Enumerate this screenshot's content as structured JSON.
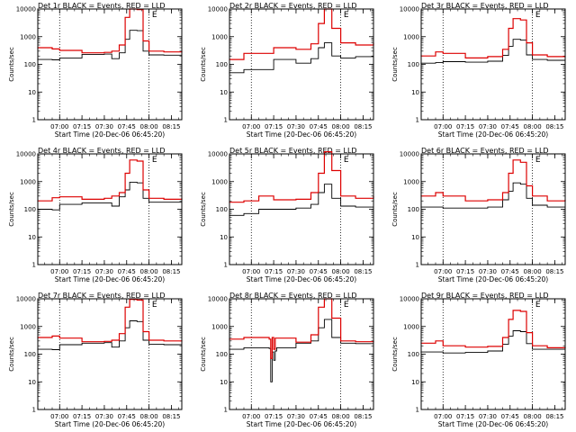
{
  "colors": {
    "events": "#000000",
    "lld": "#dd0000",
    "background": "#ffffff",
    "axes": "#000000"
  },
  "common": {
    "ylabel": "Counts/sec",
    "xlabel": "Start Time (20-Dec-06 06:45:20)",
    "y_scale": "log",
    "ylim": [
      1,
      10000
    ],
    "ytick_labels": [
      "1",
      "10",
      "100",
      "1000",
      "10000"
    ],
    "xtick_labels": [
      "07:00",
      "07:15",
      "07:30",
      "07:45",
      "08:00",
      "08:15"
    ],
    "xtick_values": [
      "07:00",
      "07:15",
      "07:30",
      "07:45",
      "08:00",
      "08:15"
    ],
    "xlim": [
      "06:45:20",
      "08:22:00"
    ],
    "grid": "vertical dotted lines at 07:00 and 08:00",
    "marker_label": "E"
  },
  "chart_data": [
    {
      "type": "line",
      "title": "Det 1r  BLACK = Events, RED = LLD",
      "x": [
        "06:45",
        "06:55",
        "07:00",
        "07:15",
        "07:30",
        "07:35",
        "07:40",
        "07:44",
        "07:47",
        "07:52",
        "07:56",
        "08:00",
        "08:10",
        "08:22"
      ],
      "series": [
        {
          "name": "Events",
          "values": [
            150,
            145,
            170,
            230,
            235,
            160,
            260,
            800,
            1700,
            1650,
            300,
            220,
            215,
            220
          ]
        },
        {
          "name": "LLD",
          "values": [
            400,
            360,
            320,
            260,
            270,
            300,
            500,
            5000,
            10000,
            9500,
            700,
            300,
            280,
            300
          ]
        }
      ]
    },
    {
      "type": "line",
      "title": "Det 2r  BLACK = Events, RED = LLD",
      "x": [
        "06:45",
        "06:55",
        "07:15",
        "07:30",
        "07:40",
        "07:45",
        "07:49",
        "07:54",
        "08:00",
        "08:10",
        "08:22"
      ],
      "series": [
        {
          "name": "Events",
          "values": [
            50,
            65,
            150,
            110,
            160,
            400,
            600,
            200,
            170,
            190,
            240
          ]
        },
        {
          "name": "LLD",
          "values": [
            150,
            250,
            400,
            350,
            550,
            3000,
            10000,
            2000,
            600,
            500,
            600
          ]
        }
      ]
    },
    {
      "type": "line",
      "title": "Det 3r  BLACK = Events, RED = LLD",
      "x": [
        "06:45",
        "06:55",
        "07:00",
        "07:15",
        "07:30",
        "07:40",
        "07:44",
        "07:47",
        "07:52",
        "07:56",
        "08:00",
        "08:10",
        "08:22"
      ],
      "series": [
        {
          "name": "Events",
          "values": [
            110,
            115,
            125,
            120,
            130,
            210,
            450,
            800,
            750,
            220,
            150,
            140,
            150
          ]
        },
        {
          "name": "LLD",
          "values": [
            200,
            280,
            250,
            170,
            190,
            350,
            2000,
            4500,
            4000,
            600,
            220,
            190,
            200
          ]
        }
      ]
    },
    {
      "type": "line",
      "title": "Det 4r  BLACK = Events, RED = LLD",
      "x": [
        "06:45",
        "06:55",
        "07:00",
        "07:15",
        "07:30",
        "07:35",
        "07:40",
        "07:44",
        "07:47",
        "07:52",
        "07:56",
        "08:00",
        "08:10",
        "08:22"
      ],
      "series": [
        {
          "name": "Events",
          "values": [
            100,
            95,
            150,
            170,
            170,
            130,
            280,
            500,
            950,
            900,
            250,
            180,
            180,
            180
          ]
        },
        {
          "name": "LLD",
          "values": [
            200,
            260,
            280,
            230,
            250,
            300,
            400,
            2000,
            6000,
            5500,
            500,
            250,
            230,
            250
          ]
        }
      ]
    },
    {
      "type": "line",
      "title": "Det 5r  BLACK = Events, RED = LLD",
      "x": [
        "06:45",
        "06:55",
        "07:05",
        "07:15",
        "07:30",
        "07:40",
        "07:45",
        "07:49",
        "07:54",
        "08:00",
        "08:10",
        "08:22"
      ],
      "series": [
        {
          "name": "Events",
          "values": [
            60,
            70,
            100,
            100,
            110,
            150,
            400,
            800,
            250,
            130,
            120,
            110
          ]
        },
        {
          "name": "LLD",
          "values": [
            180,
            200,
            300,
            220,
            230,
            400,
            2000,
            12000,
            2500,
            300,
            250,
            300
          ]
        }
      ]
    },
    {
      "type": "line",
      "title": "Det 6r  BLACK = Events, RED = LLD",
      "x": [
        "06:45",
        "06:55",
        "07:00",
        "07:15",
        "07:30",
        "07:40",
        "07:44",
        "07:47",
        "07:52",
        "07:56",
        "08:00",
        "08:10",
        "08:22"
      ],
      "series": [
        {
          "name": "Events",
          "values": [
            120,
            120,
            110,
            110,
            120,
            220,
            450,
            900,
            800,
            250,
            140,
            120,
            130
          ]
        },
        {
          "name": "LLD",
          "values": [
            300,
            400,
            300,
            200,
            220,
            400,
            2000,
            6000,
            5000,
            700,
            300,
            200,
            220
          ]
        }
      ]
    },
    {
      "type": "line",
      "title": "Det 7r  BLACK = Events, RED = LLD",
      "x": [
        "06:45",
        "06:55",
        "07:00",
        "07:15",
        "07:30",
        "07:35",
        "07:40",
        "07:44",
        "07:47",
        "07:52",
        "07:56",
        "08:00",
        "08:10",
        "08:22"
      ],
      "series": [
        {
          "name": "Events",
          "values": [
            150,
            145,
            220,
            250,
            260,
            180,
            300,
            900,
            1600,
            1500,
            320,
            230,
            220,
            240
          ]
        },
        {
          "name": "LLD",
          "values": [
            400,
            450,
            380,
            280,
            290,
            320,
            550,
            5000,
            9500,
            9000,
            650,
            320,
            300,
            320
          ]
        }
      ]
    },
    {
      "type": "line",
      "title": "Det 8r  BLACK = Events, RED = LLD",
      "x": [
        "06:45",
        "06:55",
        "07:12",
        "07:13",
        "07:14",
        "07:15",
        "07:16",
        "07:17",
        "07:30",
        "07:40",
        "07:45",
        "07:49",
        "07:54",
        "08:00",
        "08:10",
        "08:22"
      ],
      "series": [
        {
          "name": "Events",
          "values": [
            150,
            170,
            160,
            10,
            120,
            60,
            130,
            170,
            250,
            300,
            900,
            1800,
            400,
            250,
            240,
            250
          ]
        },
        {
          "name": "LLD",
          "values": [
            350,
            400,
            350,
            70,
            400,
            150,
            380,
            380,
            270,
            500,
            5000,
            10000,
            2000,
            300,
            280,
            300
          ]
        }
      ]
    },
    {
      "type": "line",
      "title": "Det 9r  BLACK = Events, RED = LLD",
      "x": [
        "06:45",
        "06:55",
        "07:00",
        "07:15",
        "07:30",
        "07:40",
        "07:44",
        "07:47",
        "07:52",
        "07:56",
        "08:00",
        "08:10",
        "08:22"
      ],
      "series": [
        {
          "name": "Events",
          "values": [
            120,
            120,
            110,
            115,
            130,
            230,
            450,
            700,
            650,
            240,
            150,
            150,
            150
          ]
        },
        {
          "name": "LLD",
          "values": [
            250,
            300,
            200,
            180,
            190,
            400,
            1800,
            3800,
            3500,
            600,
            200,
            170,
            180
          ]
        }
      ]
    }
  ]
}
